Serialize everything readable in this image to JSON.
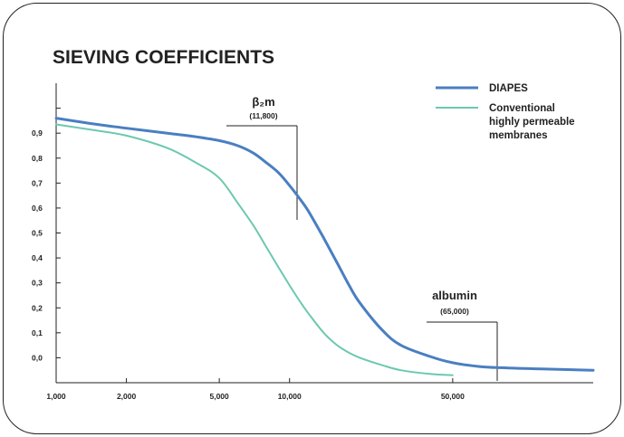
{
  "chart_data": {
    "type": "line",
    "title": "SIEVING COEFFICIENTS",
    "xlabel": "",
    "ylabel": "",
    "x_scale": "log",
    "xlim": [
      1000,
      200000
    ],
    "ylim": [
      -0.1,
      1.1
    ],
    "x_ticks": [
      {
        "value": 1000,
        "label": "1,000"
      },
      {
        "value": 2000,
        "label": "2,000"
      },
      {
        "value": 5000,
        "label": "5,000"
      },
      {
        "value": 10000,
        "label": "10,000"
      },
      {
        "value": 50000,
        "label": "50,000"
      }
    ],
    "y_ticks": [
      {
        "value": 0.0,
        "label": "0,0"
      },
      {
        "value": 0.1,
        "label": "0,1"
      },
      {
        "value": 0.2,
        "label": "0,2"
      },
      {
        "value": 0.3,
        "label": "0,3"
      },
      {
        "value": 0.4,
        "label": "0,4"
      },
      {
        "value": 0.5,
        "label": "0,5"
      },
      {
        "value": 0.6,
        "label": "0,6"
      },
      {
        "value": 0.7,
        "label": "0,7"
      },
      {
        "value": 0.8,
        "label": "0,8"
      },
      {
        "value": 0.9,
        "label": "0,9"
      },
      {
        "value": 1.0,
        "label": ""
      }
    ],
    "series": [
      {
        "name": "DIAPES",
        "color": "#4a7fc1",
        "points": [
          [
            1000,
            0.96
          ],
          [
            1500,
            0.935
          ],
          [
            2000,
            0.92
          ],
          [
            3000,
            0.9
          ],
          [
            4000,
            0.885
          ],
          [
            5000,
            0.87
          ],
          [
            6000,
            0.85
          ],
          [
            7000,
            0.82
          ],
          [
            8000,
            0.78
          ],
          [
            9000,
            0.74
          ],
          [
            10000,
            0.69
          ],
          [
            11000,
            0.64
          ],
          [
            12000,
            0.59
          ],
          [
            14000,
            0.48
          ],
          [
            16000,
            0.38
          ],
          [
            18000,
            0.29
          ],
          [
            20000,
            0.22
          ],
          [
            25000,
            0.11
          ],
          [
            30000,
            0.05
          ],
          [
            40000,
            0.005
          ],
          [
            50000,
            -0.02
          ],
          [
            65000,
            -0.035
          ],
          [
            80000,
            -0.04
          ],
          [
            120000,
            -0.045
          ],
          [
            200000,
            -0.05
          ]
        ]
      },
      {
        "name": "Conventional highly permeable membranes",
        "color": "#6cc8b0",
        "points": [
          [
            1000,
            0.935
          ],
          [
            1500,
            0.91
          ],
          [
            2000,
            0.89
          ],
          [
            3000,
            0.84
          ],
          [
            4000,
            0.78
          ],
          [
            5000,
            0.72
          ],
          [
            6000,
            0.62
          ],
          [
            7000,
            0.53
          ],
          [
            8000,
            0.44
          ],
          [
            9000,
            0.36
          ],
          [
            10000,
            0.29
          ],
          [
            11000,
            0.23
          ],
          [
            12000,
            0.18
          ],
          [
            14000,
            0.1
          ],
          [
            16000,
            0.05
          ],
          [
            18000,
            0.02
          ],
          [
            20000,
            0.0
          ],
          [
            25000,
            -0.03
          ],
          [
            30000,
            -0.05
          ],
          [
            40000,
            -0.065
          ],
          [
            50000,
            -0.07
          ]
        ]
      }
    ],
    "legend": {
      "placement": "top-right",
      "entries": [
        {
          "lines": [
            "DIAPES"
          ],
          "color": "#4a7fc1"
        },
        {
          "lines": [
            "Conventional",
            "highly permeable",
            "membranes"
          ],
          "color": "#6cc8b0"
        }
      ]
    },
    "annotations": [
      {
        "main": "β₂m",
        "sub": "(11,800)",
        "x": 11800
      },
      {
        "main": "albumin",
        "sub": "(65,000)",
        "x": 65000
      }
    ]
  }
}
